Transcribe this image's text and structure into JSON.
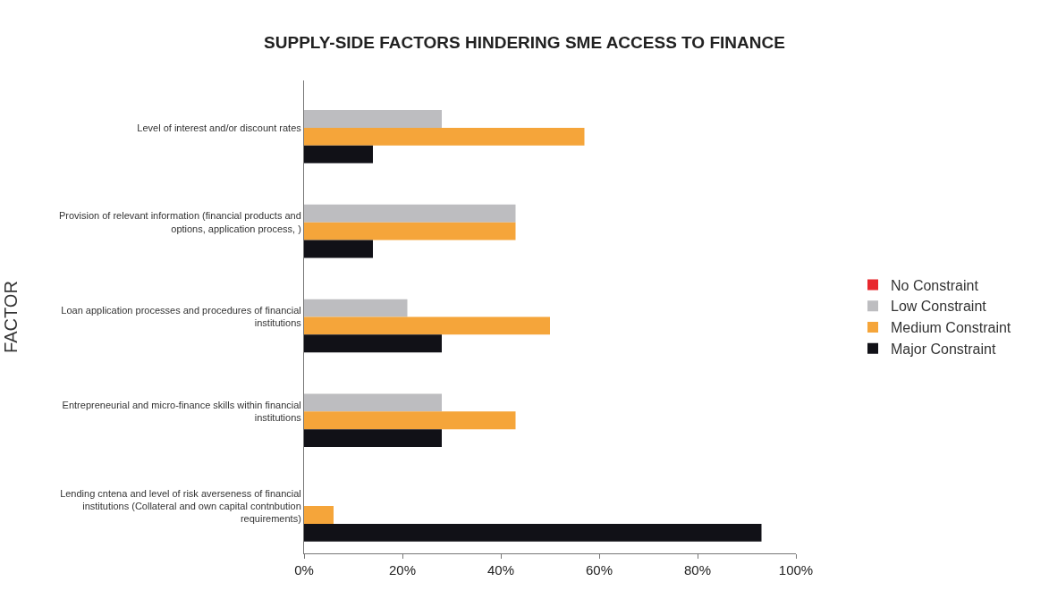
{
  "chart_data": {
    "type": "bar",
    "orientation": "horizontal",
    "title": "SUPPLY-SIDE FACTORS HINDERING SME ACCESS TO FINANCE",
    "ylabel": "FACTOR",
    "categories": [
      "Level of interest and/or discount rates",
      "Provision of relevant information (financial products and options, application process, )",
      "Loan application processes and procedures of financial institutions",
      "Entrepreneurial and micro-finance skills within financial institutions",
      "Lending cntena and level of risk averseness of financial institutions (Collateral and own capital contnbution requirements)"
    ],
    "series": [
      {
        "name": "No Constraint",
        "color": "#e8282e",
        "values": [
          0,
          0,
          0,
          0,
          0
        ]
      },
      {
        "name": "Low Constraint",
        "color": "#bdbdc0",
        "values": [
          28,
          43,
          21,
          28,
          0
        ]
      },
      {
        "name": "Medium Constraint",
        "color": "#f5a53a",
        "values": [
          57,
          43,
          50,
          43,
          6
        ]
      },
      {
        "name": "Major Constraint",
        "color": "#111117",
        "values": [
          14,
          14,
          28,
          28,
          93
        ]
      }
    ],
    "xlim": [
      0,
      100
    ],
    "xticks": [
      {
        "value": 0,
        "label": "0%"
      },
      {
        "value": 20,
        "label": "20%"
      },
      {
        "value": 40,
        "label": "40%"
      },
      {
        "value": 60,
        "label": "60%"
      },
      {
        "value": 80,
        "label": "80%"
      },
      {
        "value": 100,
        "label": "100%"
      }
    ],
    "legend": "right"
  }
}
